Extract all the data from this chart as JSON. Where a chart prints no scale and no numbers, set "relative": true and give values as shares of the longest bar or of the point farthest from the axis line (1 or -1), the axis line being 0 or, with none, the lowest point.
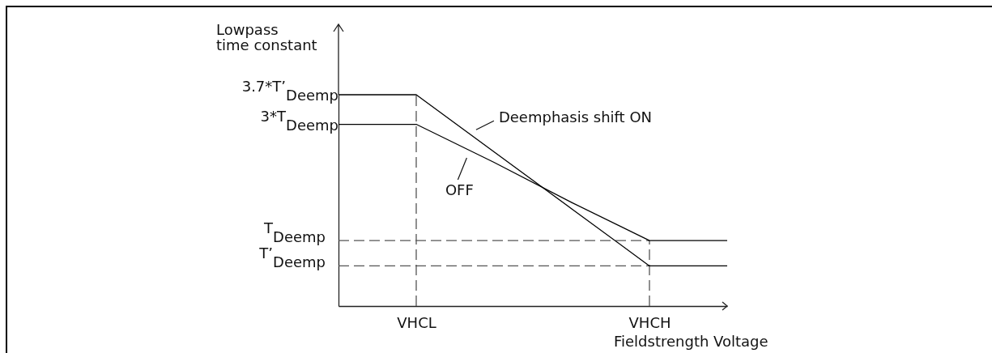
{
  "chart_data": {
    "type": "line",
    "relative": true,
    "xlabel": "Fieldstrength Voltage",
    "ylabel": "Lowpass time constant",
    "categories": [
      null,
      "VHCL",
      null,
      null,
      "VHCH",
      null
    ],
    "series": [
      {
        "name": "Deemphasis shift ON",
        "color": "#000000",
        "values": [
          1,
          1,
          0.73,
          0.46,
          0.19,
          0.19
        ]
      },
      {
        "name": "OFF",
        "color": "#000000",
        "values": [
          0.86,
          0.86,
          0.68,
          0.49,
          0.31,
          0.31
        ]
      }
    ],
    "ref_lines": [
      {
        "axis": "y",
        "value": 0.31,
        "label": "T$_{Deemp}$",
        "color": "#555555",
        "line_style": "dashed"
      },
      {
        "axis": "y",
        "value": 0.19,
        "label": "T’$_{Deemp}$",
        "color": "#555555",
        "line_style": "dashed"
      },
      {
        "axis": "x",
        "value": "VHCL",
        "color": "#555555",
        "line_style": "dashed"
      },
      {
        "axis": "x",
        "value": "VHCH",
        "color": "#555555",
        "line_style": "dashed"
      }
    ],
    "annotations": [
      "3.7*T’$_{Deemp}$",
      "3*T$_{Deemp}$"
    ]
  }
}
